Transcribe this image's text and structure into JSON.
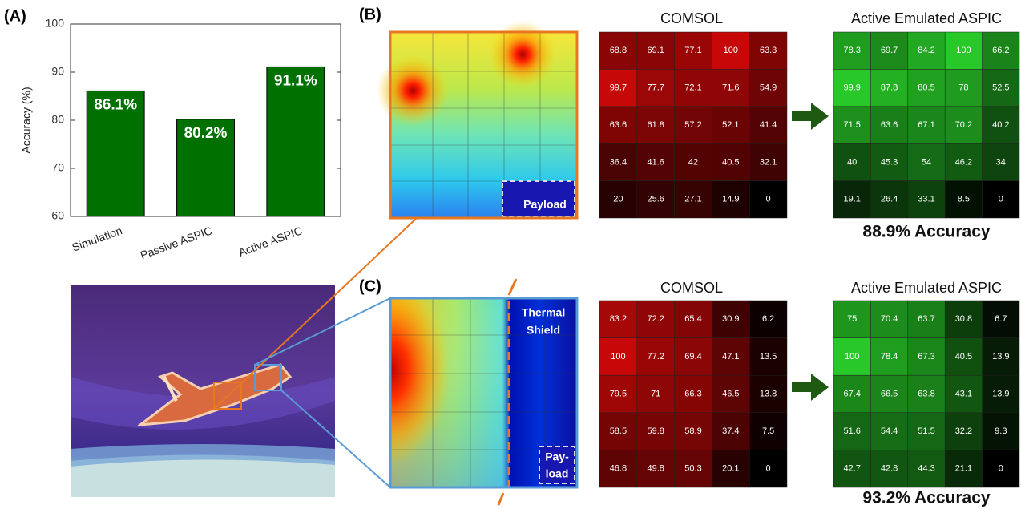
{
  "labels": {
    "a": "(A)",
    "b": "(B)",
    "c": "(C)"
  },
  "thermal": {
    "b_payload": "Payload",
    "c_shield": [
      "Thermal",
      "Shield"
    ],
    "c_payload": [
      "Pay-",
      "load"
    ]
  },
  "chart_data": [
    {
      "type": "bar",
      "ylabel": "Accuracy (%)",
      "categories": [
        "Simulation",
        "Passive ASPIC",
        "Active ASPIC"
      ],
      "values": [
        86.1,
        80.2,
        91.1
      ],
      "value_labels": [
        "86.1%",
        "80.2%",
        "91.1%"
      ],
      "color": "#007000",
      "ylim": [
        60,
        100
      ],
      "yticks": [
        60,
        70,
        80,
        90,
        100
      ]
    },
    {
      "type": "heatmap",
      "title": "COMSOL",
      "color": "red",
      "values": [
        [
          68.8,
          69.1,
          77.1,
          100,
          63.3
        ],
        [
          99.7,
          77.7,
          72.1,
          71.6,
          54.9
        ],
        [
          63.6,
          61.8,
          57.2,
          52.1,
          41.4
        ],
        [
          36.4,
          41.6,
          42,
          40.5,
          32.1
        ],
        [
          20,
          25.6,
          27.1,
          14.9,
          0
        ]
      ]
    },
    {
      "type": "heatmap",
      "title": "Active Emulated ASPIC",
      "subtitle": "88.9% Accuracy",
      "color": "green",
      "values": [
        [
          78.3,
          69.7,
          84.2,
          100,
          66.2
        ],
        [
          99.9,
          87.8,
          80.5,
          78,
          52.5
        ],
        [
          71.5,
          63.6,
          67.1,
          70.2,
          40.2
        ],
        [
          40,
          45.3,
          54,
          46.2,
          34
        ],
        [
          19.1,
          26.4,
          33.1,
          8.5,
          0
        ]
      ]
    },
    {
      "type": "heatmap",
      "title": "COMSOL",
      "color": "red",
      "values": [
        [
          83.2,
          72.2,
          65.4,
          30.9,
          6.2
        ],
        [
          100,
          77.2,
          69.4,
          47.1,
          13.5
        ],
        [
          79.5,
          71,
          66.3,
          46.5,
          13.8
        ],
        [
          58.5,
          59.8,
          58.9,
          37.4,
          7.5
        ],
        [
          46.8,
          49.8,
          50.3,
          20.1,
          0
        ]
      ]
    },
    {
      "type": "heatmap",
      "title": "Active Emulated ASPIC",
      "subtitle": "93.2% Accuracy",
      "color": "green",
      "values": [
        [
          75,
          70.4,
          63.7,
          30.8,
          6.7
        ],
        [
          100,
          78.4,
          67.3,
          40.5,
          13.9
        ],
        [
          67.4,
          66.5,
          63.8,
          43.1,
          13.9
        ],
        [
          51.6,
          54.4,
          51.5,
          32.2,
          9.3
        ],
        [
          42.7,
          42.8,
          44.3,
          21.1,
          0
        ]
      ]
    }
  ]
}
